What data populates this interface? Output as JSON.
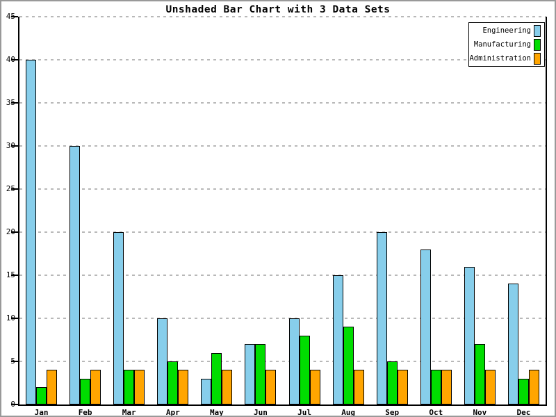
{
  "window": {
    "title": "Unshaded Bar Chart with 3 Data Sets"
  },
  "chart_data": {
    "type": "bar",
    "title": "Unshaded Bar Chart with 3 Data Sets",
    "categories": [
      "Jan",
      "Feb",
      "Mar",
      "Apr",
      "May",
      "Jun",
      "Jul",
      "Aug",
      "Sep",
      "Oct",
      "Nov",
      "Dec"
    ],
    "series": [
      {
        "name": "Engineering",
        "color": "#87CEEB",
        "values": [
          40,
          30,
          20,
          10,
          3,
          7,
          10,
          15,
          20,
          18,
          16,
          14
        ]
      },
      {
        "name": "Manufacturing",
        "color": "#00DD00",
        "values": [
          2,
          3,
          4,
          5,
          6,
          7,
          8,
          9,
          5,
          4,
          7,
          3
        ]
      },
      {
        "name": "Administration",
        "color": "#FFA500",
        "values": [
          4,
          4,
          4,
          4,
          4,
          4,
          4,
          4,
          4,
          4,
          4,
          4
        ]
      }
    ],
    "xlabel": "",
    "ylabel": "",
    "ylim": [
      0,
      45
    ],
    "ytick_step": 5,
    "yticks": [
      0,
      5,
      10,
      15,
      20,
      25,
      30,
      35,
      40,
      45
    ],
    "grid": "horizontal-dashed",
    "grid_color": "#B8B8B8",
    "axis_color": "#000000",
    "background": "#FFFFFF",
    "legend_position": "top-right"
  }
}
